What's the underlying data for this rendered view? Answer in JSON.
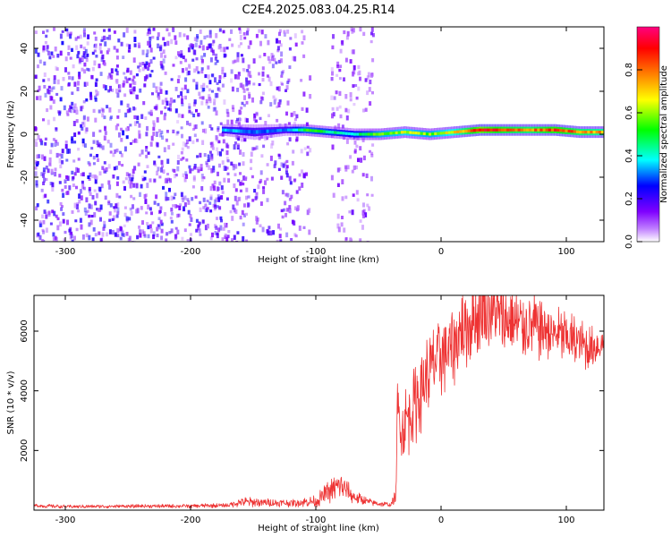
{
  "chart_data": [
    {
      "type": "heatmap",
      "title": "C2E4.2025.083.04.25.R14",
      "xlabel": "Height of straight line (km)",
      "ylabel": "Frequency (Hz)",
      "xlim": [
        -325,
        130
      ],
      "ylim": [
        -50,
        50
      ],
      "xticks": [
        -300,
        -200,
        -100,
        0,
        100
      ],
      "yticks": [
        -40,
        -20,
        0,
        20,
        40
      ],
      "colorbar": {
        "label": "Normalized spectral amplitude",
        "range": [
          0,
          1
        ],
        "ticks": [
          "0.0",
          "0.2",
          "0.4",
          "0.6",
          "0.8"
        ],
        "colors": [
          "#ffffff",
          "#7f00ff",
          "#0000ff",
          "#00ffff",
          "#00ff00",
          "#ffff00",
          "#ff7f00",
          "#ff0000",
          "#ff0080"
        ]
      },
      "regions": [
        {
          "x_range": [
            -325,
            -175
          ],
          "band_hz": [
            -50,
            50
          ],
          "amplitude": 0.15,
          "pattern": "dense scattered noise"
        },
        {
          "x_range": [
            -175,
            -120
          ],
          "band_hz": [
            -50,
            50
          ],
          "amplitude": 0.12,
          "pattern": "scattered noise, sparser"
        },
        {
          "x_range": [
            -120,
            -55
          ],
          "band_hz": [
            -50,
            50
          ],
          "amplitude": 0.08,
          "pattern": "light vertical streaks, gap near -100"
        },
        {
          "x_range": [
            -55,
            130
          ],
          "band_hz": [
            -50,
            50
          ],
          "amplitude": 0.0,
          "pattern": "empty"
        }
      ],
      "signal_band": [
        {
          "x": -175,
          "center_hz": 2,
          "width_hz": 3,
          "amplitude": 0.35
        },
        {
          "x": -150,
          "center_hz": 1,
          "width_hz": 4,
          "amplitude": 0.3
        },
        {
          "x": -125,
          "center_hz": 2,
          "width_hz": 3,
          "amplitude": 0.3
        },
        {
          "x": -110,
          "center_hz": 2,
          "width_hz": 3,
          "amplitude": 0.5
        },
        {
          "x": -90,
          "center_hz": 1,
          "width_hz": 3,
          "amplitude": 0.45
        },
        {
          "x": -70,
          "center_hz": 0,
          "width_hz": 3,
          "amplitude": 0.4
        },
        {
          "x": -50,
          "center_hz": 0,
          "width_hz": 3,
          "amplitude": 0.55
        },
        {
          "x": -30,
          "center_hz": 1,
          "width_hz": 3,
          "amplitude": 0.6
        },
        {
          "x": -10,
          "center_hz": 0,
          "width_hz": 3,
          "amplitude": 0.55
        },
        {
          "x": 10,
          "center_hz": 1,
          "width_hz": 3,
          "amplitude": 0.65
        },
        {
          "x": 30,
          "center_hz": 2,
          "width_hz": 3,
          "amplitude": 0.9
        },
        {
          "x": 50,
          "center_hz": 2,
          "width_hz": 3,
          "amplitude": 0.8
        },
        {
          "x": 70,
          "center_hz": 2,
          "width_hz": 3,
          "amplitude": 0.75
        },
        {
          "x": 90,
          "center_hz": 2,
          "width_hz": 3,
          "amplitude": 0.85
        },
        {
          "x": 110,
          "center_hz": 1,
          "width_hz": 3,
          "amplitude": 0.75
        },
        {
          "x": 130,
          "center_hz": 1,
          "width_hz": 3,
          "amplitude": 0.7
        }
      ]
    },
    {
      "type": "line",
      "xlabel": "Height of straight line (km)",
      "ylabel": "SNR (10 * v/v)",
      "xlim": [
        -325,
        130
      ],
      "ylim": [
        0,
        7200
      ],
      "xticks": [
        -300,
        -200,
        -100,
        0,
        100
      ],
      "yticks": [
        2000,
        4000,
        6000
      ],
      "line_color": "#ee3333",
      "series": [
        {
          "x": [
            -325,
            -300,
            -250,
            -200,
            -170,
            -160,
            -140,
            -120,
            -100,
            -90,
            -80,
            -70,
            -60,
            -50,
            -40,
            -36,
            -35,
            -30,
            -20,
            -10,
            0,
            10,
            20,
            30,
            40,
            50,
            60,
            70,
            80,
            90,
            100,
            110,
            120,
            130
          ],
          "y": [
            150,
            120,
            130,
            140,
            160,
            280,
            250,
            230,
            300,
            600,
            850,
            450,
            300,
            220,
            180,
            500,
            3200,
            2800,
            3700,
            4600,
            5200,
            5600,
            6200,
            6500,
            6700,
            6300,
            6200,
            6200,
            6100,
            5900,
            5800,
            5600,
            5400,
            5600
          ],
          "spread": [
            70,
            60,
            60,
            70,
            80,
            180,
            150,
            130,
            200,
            400,
            500,
            250,
            150,
            100,
            80,
            300,
            1200,
            1300,
            1500,
            1500,
            1500,
            1500,
            1500,
            1400,
            1500,
            1400,
            1300,
            1200,
            1200,
            1000,
            1000,
            900,
            800,
            700
          ]
        }
      ]
    }
  ]
}
